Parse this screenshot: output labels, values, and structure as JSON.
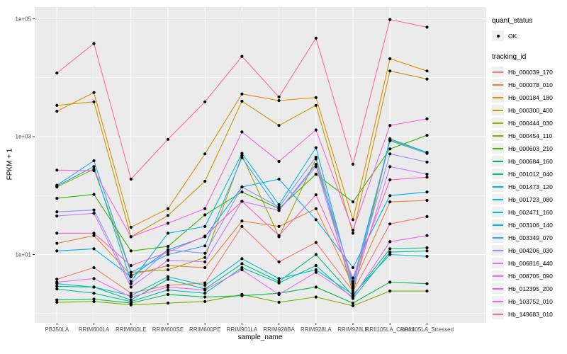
{
  "legend": {
    "quant_status": {
      "title": "quant_status",
      "items": [
        {
          "label": "OK"
        }
      ]
    },
    "tracking_id": {
      "title": "tracking_id"
    }
  },
  "chart_data": {
    "type": "line",
    "title": "",
    "xlabel": "sample_name",
    "ylabel": "FPKM + 1",
    "y_scale": "log10",
    "y_ticks": [
      "1e+05",
      "1e+03",
      "1e+01"
    ],
    "y_tick_values": [
      100000,
      1000,
      10
    ],
    "y_minor_values": [
      10000,
      100,
      1
    ],
    "ylim": [
      0.75,
      160000
    ],
    "grid": true,
    "legend_position": "right",
    "panel_bg": "#EBEBEB",
    "grid_color": "#FFFFFF",
    "point_color": "#000000",
    "quant_status_all": "OK",
    "categories": [
      "PB350LA",
      "RRIM600LA",
      "RRIM600LE",
      "RRIM600SE",
      "RRIM600PE",
      "RRIM901LA",
      "RRIM928BA",
      "RRIM928LA",
      "RRIM928LE",
      "RRII105LA_Control",
      "RRII105LA_Stressed"
    ],
    "series": [
      {
        "name": "Hb_000039_170",
        "color": "#F8766D",
        "values": [
          3.8,
          6.0,
          2.2,
          3.0,
          3.3,
          30,
          7.5,
          16,
          2.4,
          33,
          44
        ]
      },
      {
        "name": "Hb_000078_010",
        "color": "#EA8331",
        "values": [
          15.5,
          21,
          4.5,
          6.5,
          6.0,
          37,
          30,
          60,
          3.0,
          78,
          83
        ]
      },
      {
        "name": "Hb_000184_180",
        "color": "#D89000",
        "values": [
          2700,
          5600,
          29,
          60,
          510,
          5300,
          4100,
          4600,
          39,
          21000,
          13000
        ]
      },
      {
        "name": "Hb_000300_400",
        "color": "#C09B00",
        "values": [
          3400,
          3900,
          20,
          46,
          175,
          4000,
          1550,
          3400,
          23,
          13000,
          9500
        ]
      },
      {
        "name": "Hb_000444_030",
        "color": "#A3A500",
        "values": [
          140,
          280,
          5.0,
          5.5,
          8.9,
          480,
          20,
          420,
          2.2,
          880,
          540
        ]
      },
      {
        "name": "Hb_000454_110",
        "color": "#7CAE00",
        "values": [
          1.55,
          1.6,
          1.4,
          1.5,
          1.6,
          2.1,
          1.55,
          1.9,
          1.35,
          2.4,
          2.4
        ]
      },
      {
        "name": "Hb_000603_210",
        "color": "#39B600",
        "values": [
          90,
          105,
          11.5,
          13.7,
          47,
          115,
          60,
          230,
          78,
          620,
          1050
        ]
      },
      {
        "name": "Hb_000684_160",
        "color": "#00BB4E",
        "values": [
          1.7,
          1.75,
          1.5,
          2.1,
          1.9,
          2.0,
          2.2,
          2.8,
          1.5,
          3.4,
          3.2
        ]
      },
      {
        "name": "Hb_001012_040",
        "color": "#00BF7D",
        "values": [
          2.9,
          2.8,
          1.7,
          3.8,
          2.6,
          7.0,
          3.5,
          10,
          2.0,
          12.5,
          13
        ]
      },
      {
        "name": "Hb_001473_120",
        "color": "#00C1A3",
        "values": [
          2.6,
          2.2,
          1.6,
          2.5,
          2.2,
          6.0,
          3.3,
          6.5,
          1.8,
          11,
          11.5
        ]
      },
      {
        "name": "Hb_001723_080",
        "color": "#00BFC4",
        "values": [
          3.2,
          2.8,
          2.0,
          4.2,
          3.0,
          8.5,
          3.9,
          5.5,
          2.1,
          10,
          9.3
        ]
      },
      {
        "name": "Hb_002471_160",
        "color": "#00BAE0",
        "values": [
          145,
          310,
          3.5,
          23,
          30,
          520,
          70,
          650,
          2.8,
          920,
          540
        ]
      },
      {
        "name": "Hb_003106_140",
        "color": "#00B0F6",
        "values": [
          11.5,
          12.5,
          4.2,
          12,
          20,
          140,
          190,
          39,
          6.0,
          100,
          115
        ]
      },
      {
        "name": "Hb_003349_070",
        "color": "#35A2FF",
        "values": [
          150,
          390,
          5.0,
          10,
          14,
          440,
          56,
          340,
          3.5,
          850,
          520
        ]
      },
      {
        "name": "Hb_004206_030",
        "color": "#9590FF",
        "values": [
          53,
          57,
          3.2,
          12,
          10.5,
          140,
          64,
          450,
          3.2,
          510,
          370
        ]
      },
      {
        "name": "Hb_006816_440",
        "color": "#C77CFF",
        "values": [
          45,
          50,
          2.8,
          8.0,
          7.5,
          80,
          56,
          310,
          2.6,
          310,
          230
        ]
      },
      {
        "name": "Hb_008705_090",
        "color": "#E76BF3",
        "values": [
          3.4,
          3.9,
          1.9,
          2.8,
          2.5,
          5.5,
          2.1,
          5.0,
          1.9,
          16.5,
          21
        ]
      },
      {
        "name": "Hb_012395_200",
        "color": "#FA62DB",
        "values": [
          270,
          265,
          20,
          34,
          60,
          1200,
          380,
          1300,
          26,
          1550,
          2000
        ]
      },
      {
        "name": "Hb_103752_010",
        "color": "#FF62BC",
        "values": [
          23,
          23,
          6.5,
          11,
          20.5,
          80,
          21,
          103,
          4.0,
          185,
          205
        ]
      },
      {
        "name": "Hb_149683_010",
        "color": "#FF6A98",
        "values": [
          12000,
          38000,
          190,
          900,
          3900,
          23000,
          4700,
          47000,
          340,
          97000,
          72000
        ]
      }
    ]
  }
}
